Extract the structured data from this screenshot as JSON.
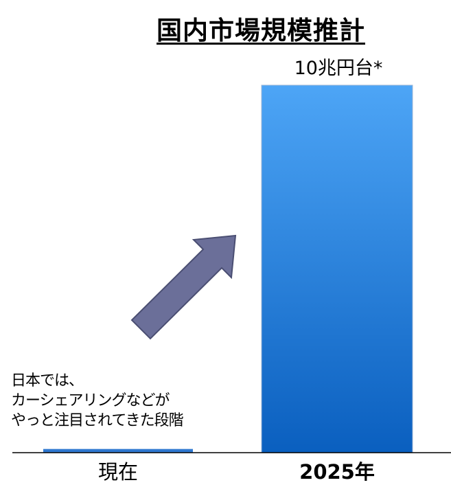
{
  "title": "国内市場規模推計",
  "note_lines": [
    "日本では、",
    "カーシェアリングなどが",
    "やっと注目されてきた段階"
  ],
  "colors": {
    "bar_top": "#4da5f6",
    "bar_bottom": "#0a5fbf",
    "current_bar": "#2f78d0",
    "arrow_fill": "#6b6f99",
    "arrow_stroke": "#4a4e72",
    "axis": "#000000"
  },
  "chart_data": {
    "type": "bar",
    "categories": [
      "現在",
      "2025年"
    ],
    "values": [
      1,
      100
    ],
    "value_labels": [
      "",
      "10兆円台*"
    ],
    "ylim": [
      0,
      100
    ],
    "grid": false,
    "legend": "none",
    "annotation": "arrow-up-right"
  }
}
